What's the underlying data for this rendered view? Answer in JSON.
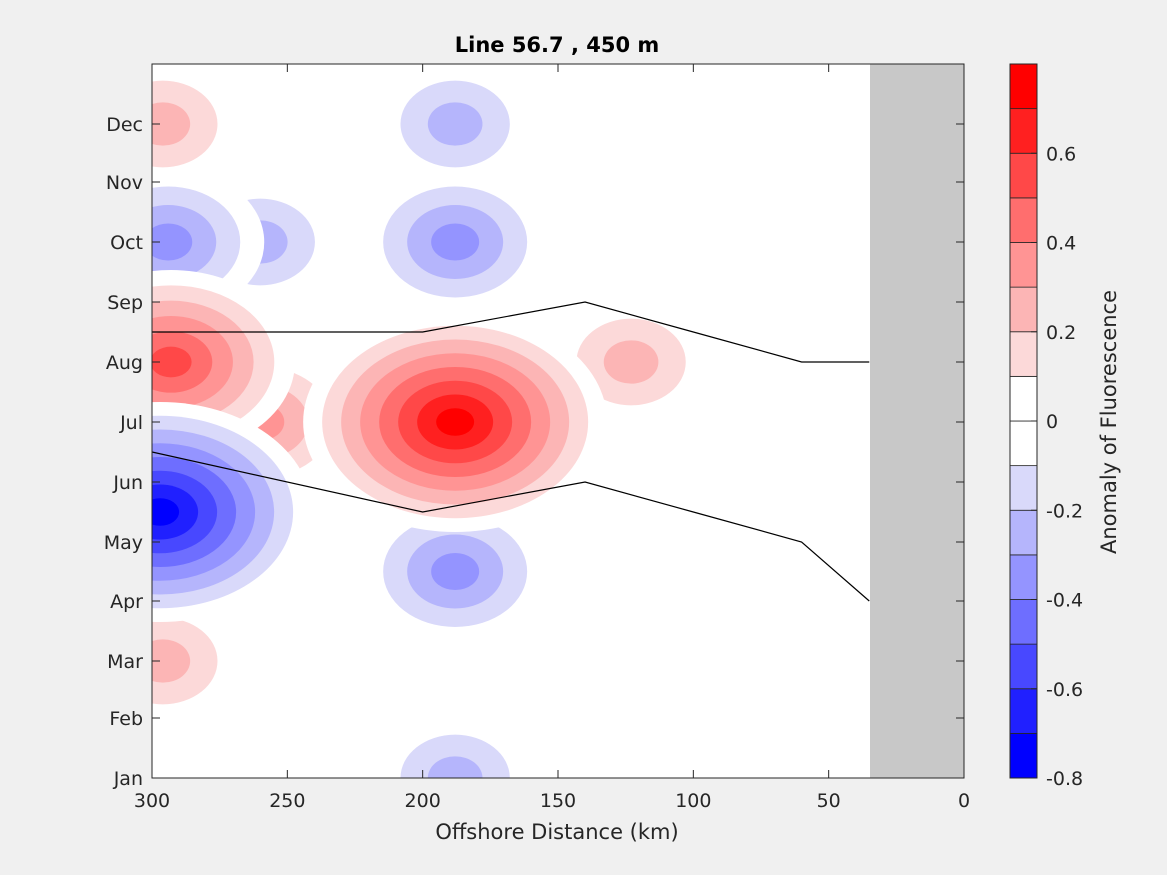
{
  "chart_data": {
    "type": "heatmap",
    "subtype": "filled-contour",
    "title": "Line 56.7 , 450 m",
    "xlabel": "Offshore Distance (km)",
    "ylabel": "",
    "xlim": [
      300,
      0
    ],
    "x_ticks": [
      300,
      250,
      200,
      150,
      100,
      50,
      0
    ],
    "x_tick_labels": [
      "300",
      "250",
      "200",
      "150",
      "100",
      "50",
      "0"
    ],
    "y_ticks": [
      "Jan",
      "Feb",
      "Mar",
      "Apr",
      "May",
      "Jun",
      "Jul",
      "Aug",
      "Sep",
      "Oct",
      "Nov",
      "Dec"
    ],
    "colorbar": {
      "label": "Anomaly of Fluorescence",
      "range": [
        -0.8,
        0.8
      ],
      "levels": [
        -0.8,
        -0.7,
        -0.6,
        -0.5,
        -0.4,
        -0.3,
        -0.2,
        -0.1,
        0.0,
        0.1,
        0.2,
        0.3,
        0.4,
        0.5,
        0.6,
        0.7,
        0.8
      ],
      "tick_labels": [
        "-0.8",
        "-0.6",
        "-0.4",
        "-0.2",
        "0",
        "0.2",
        "0.4",
        "0.6"
      ],
      "colors": [
        "#0000ff",
        "#2020ff",
        "#4848ff",
        "#6e6eff",
        "#9494ff",
        "#b5b5fc",
        "#d9d9fa",
        "#ffffff",
        "#ffffff",
        "#fcd9d9",
        "#fcb5b5",
        "#ff9494",
        "#ff6e6e",
        "#ff4848",
        "#ff2020",
        "#ff0000"
      ]
    },
    "no_data_region": {
      "x_from_km": 35,
      "x_to_km": 0,
      "color": "#c8c8c8"
    },
    "features": [
      {
        "sign": "positive",
        "center": {
          "x_km": 188,
          "month": "Jul"
        },
        "peak": 0.8
      },
      {
        "sign": "positive",
        "center": {
          "x_km": 293,
          "month": "Aug"
        },
        "peak": 0.6
      },
      {
        "sign": "positive",
        "center": {
          "x_km": 260,
          "month": "Jul"
        },
        "peak": 0.4
      },
      {
        "sign": "positive",
        "center": {
          "x_km": 123,
          "month": "Aug"
        },
        "peak": 0.3
      },
      {
        "sign": "positive",
        "center": {
          "x_km": 296,
          "month": "Dec"
        },
        "peak": 0.3
      },
      {
        "sign": "positive",
        "center": {
          "x_km": 296,
          "month": "Mar"
        },
        "peak": 0.3
      },
      {
        "sign": "positive",
        "center": {
          "x_km": 38,
          "month": "May-Jun"
        },
        "peak": 0.1
      },
      {
        "sign": "negative",
        "center": {
          "x_km": 297,
          "month": "May-Jun"
        },
        "peak": -0.8
      },
      {
        "sign": "negative",
        "center": {
          "x_km": 294,
          "month": "Oct"
        },
        "peak": -0.4
      },
      {
        "sign": "negative",
        "center": {
          "x_km": 188,
          "month": "Oct"
        },
        "peak": -0.4
      },
      {
        "sign": "negative",
        "center": {
          "x_km": 260,
          "month": "Oct"
        },
        "peak": -0.3
      },
      {
        "sign": "negative",
        "center": {
          "x_km": 188,
          "month": "Apr-May"
        },
        "peak": -0.4
      },
      {
        "sign": "negative",
        "center": {
          "x_km": 188,
          "month": "Jan"
        },
        "peak": -0.3
      },
      {
        "sign": "negative",
        "center": {
          "x_km": 188,
          "month": "Dec"
        },
        "peak": -0.3
      }
    ]
  }
}
